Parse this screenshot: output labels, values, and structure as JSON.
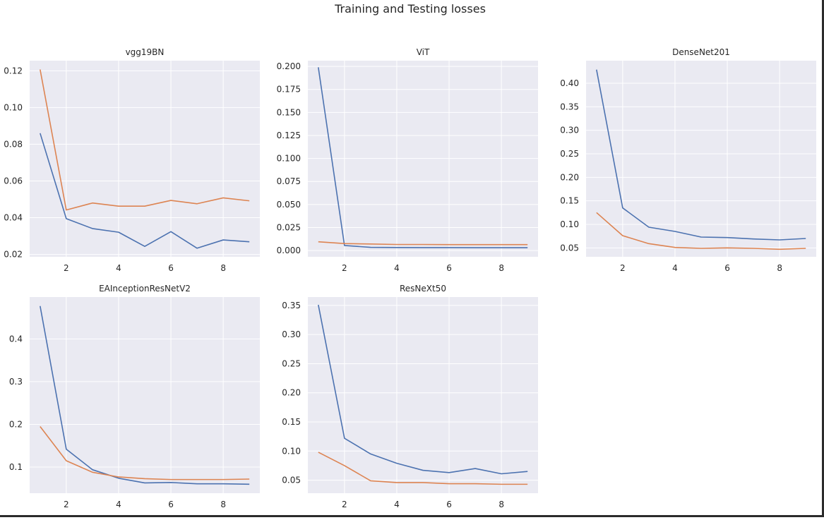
{
  "figure": {
    "title": "Training and Testing losses"
  },
  "colors": {
    "background": "#eaeaf2",
    "grid": "#ffffff",
    "series_1": "#4c72b0",
    "series_2": "#dd8452",
    "text": "#262626"
  },
  "chart_data": [
    {
      "type": "line",
      "title": "vgg19BN",
      "xlabel": "",
      "ylabel": "",
      "x": [
        1,
        2,
        3,
        4,
        5,
        6,
        7,
        8,
        9
      ],
      "xlim": [
        0.6,
        9.4
      ],
      "ylim": [
        0.0187,
        0.1255
      ],
      "xticks": [
        2,
        4,
        6,
        8
      ],
      "yticks": [
        0.02,
        0.04,
        0.06,
        0.08,
        0.1,
        0.12
      ],
      "yticklabels": [
        "0.02",
        "0.04",
        "0.06",
        "0.08",
        "0.10",
        "0.12"
      ],
      "grid": true,
      "series": [
        {
          "values": [
            0.086,
            0.0395,
            0.0341,
            0.0321,
            0.0244,
            0.0324,
            0.0234,
            0.0279,
            0.0269
          ]
        },
        {
          "values": [
            0.1207,
            0.0442,
            0.048,
            0.0463,
            0.0463,
            0.0494,
            0.0476,
            0.0508,
            0.0492
          ]
        }
      ]
    },
    {
      "type": "line",
      "title": "ViT",
      "xlabel": "",
      "ylabel": "",
      "x": [
        1,
        2,
        3,
        4,
        5,
        6,
        7,
        8,
        9
      ],
      "xlim": [
        0.6,
        9.4
      ],
      "ylim": [
        -0.0068,
        0.2062
      ],
      "xticks": [
        2,
        4,
        6,
        8
      ],
      "yticks": [
        0.0,
        0.025,
        0.05,
        0.075,
        0.1,
        0.125,
        0.15,
        0.175,
        0.2
      ],
      "yticklabels": [
        "0.000",
        "0.025",
        "0.050",
        "0.075",
        "0.100",
        "0.125",
        "0.150",
        "0.175",
        "0.200"
      ],
      "grid": true,
      "series": [
        {
          "values": [
            0.199,
            0.0055,
            0.0035,
            0.0033,
            0.0032,
            0.0032,
            0.0031,
            0.0031,
            0.0031
          ]
        },
        {
          "values": [
            0.0095,
            0.0076,
            0.0071,
            0.0066,
            0.0066,
            0.0065,
            0.0065,
            0.0065,
            0.0065
          ]
        }
      ]
    },
    {
      "type": "line",
      "title": "DenseNet201",
      "xlabel": "",
      "ylabel": "",
      "x": [
        1,
        2,
        3,
        4,
        5,
        6,
        7,
        8,
        9
      ],
      "xlim": [
        0.6,
        9.4
      ],
      "ylim": [
        0.031,
        0.448
      ],
      "xticks": [
        2,
        4,
        6,
        8
      ],
      "yticks": [
        0.05,
        0.1,
        0.15,
        0.2,
        0.25,
        0.3,
        0.35,
        0.4
      ],
      "yticklabels": [
        "0.05",
        "0.10",
        "0.15",
        "0.20",
        "0.25",
        "0.30",
        "0.35",
        "0.40"
      ],
      "grid": true,
      "series": [
        {
          "values": [
            0.429,
            0.135,
            0.094,
            0.085,
            0.073,
            0.072,
            0.069,
            0.067,
            0.07
          ]
        },
        {
          "values": [
            0.125,
            0.076,
            0.059,
            0.051,
            0.049,
            0.05,
            0.049,
            0.047,
            0.049
          ]
        }
      ]
    },
    {
      "type": "line",
      "title": "EAInceptionResNetV2",
      "xlabel": "",
      "ylabel": "",
      "x": [
        1,
        2,
        3,
        4,
        5,
        6,
        7,
        8,
        9
      ],
      "xlim": [
        0.6,
        9.4
      ],
      "ylim": [
        0.039,
        0.498
      ],
      "xticks": [
        2,
        4,
        6,
        8
      ],
      "yticks": [
        0.1,
        0.2,
        0.3,
        0.4
      ],
      "yticklabels": [
        "0.1",
        "0.2",
        "0.3",
        "0.4"
      ],
      "grid": true,
      "series": [
        {
          "values": [
            0.477,
            0.142,
            0.094,
            0.074,
            0.063,
            0.064,
            0.061,
            0.061,
            0.06
          ]
        },
        {
          "values": [
            0.195,
            0.115,
            0.088,
            0.077,
            0.073,
            0.071,
            0.071,
            0.071,
            0.072
          ]
        }
      ]
    },
    {
      "type": "line",
      "title": "ResNeXt50",
      "xlabel": "",
      "ylabel": "",
      "x": [
        1,
        2,
        3,
        4,
        5,
        6,
        7,
        8,
        9
      ],
      "xlim": [
        0.6,
        9.4
      ],
      "ylim": [
        0.0277,
        0.3644
      ],
      "xticks": [
        2,
        4,
        6,
        8
      ],
      "yticks": [
        0.05,
        0.1,
        0.15,
        0.2,
        0.25,
        0.3,
        0.35
      ],
      "yticklabels": [
        "0.05",
        "0.10",
        "0.15",
        "0.20",
        "0.25",
        "0.30",
        "0.35"
      ],
      "grid": true,
      "series": [
        {
          "values": [
            0.351,
            0.122,
            0.095,
            0.079,
            0.067,
            0.063,
            0.07,
            0.061,
            0.065
          ]
        },
        {
          "values": [
            0.098,
            0.075,
            0.049,
            0.046,
            0.046,
            0.044,
            0.044,
            0.043,
            0.043
          ]
        }
      ]
    }
  ]
}
